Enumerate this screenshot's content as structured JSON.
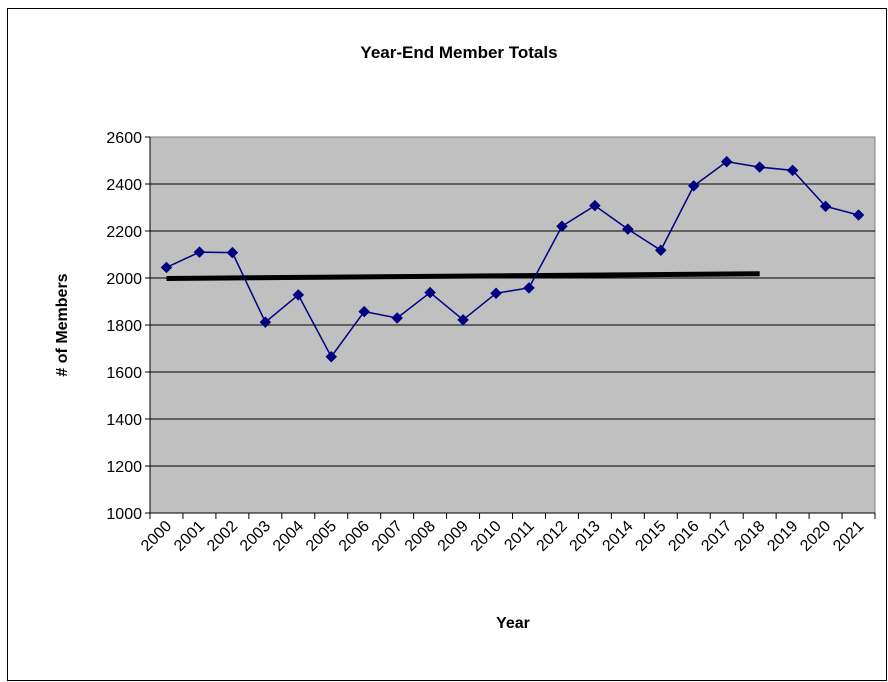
{
  "chart_data": {
    "type": "line",
    "title": "Year-End Member Totals",
    "xlabel": "Year",
    "ylabel": "# of Members",
    "categories": [
      "2000",
      "2001",
      "2002",
      "2003",
      "2004",
      "2005",
      "2006",
      "2007",
      "2008",
      "2009",
      "2010",
      "2011",
      "2012",
      "2013",
      "2014",
      "2015",
      "2016",
      "2017",
      "2018",
      "2019",
      "2020",
      "2021"
    ],
    "series": [
      {
        "values": [
          2045,
          2110,
          2108,
          1812,
          1928,
          1665,
          1857,
          1830,
          1938,
          1822,
          1935,
          1958,
          2220,
          2308,
          2208,
          2118,
          2392,
          2495,
          2472,
          2458,
          2305,
          2268
        ],
        "color": "#000080",
        "marker": "diamond"
      }
    ],
    "trendline": {
      "start_category": "2000",
      "end_category": "2018",
      "start_value": 1998,
      "end_value": 2018,
      "color": "#000000"
    },
    "ylim": [
      1000,
      2600
    ],
    "yticks": [
      1000,
      1200,
      1400,
      1600,
      1800,
      2000,
      2200,
      2400,
      2600
    ],
    "plot_background": "#c0c0c0",
    "grid": true,
    "legend": "none"
  }
}
